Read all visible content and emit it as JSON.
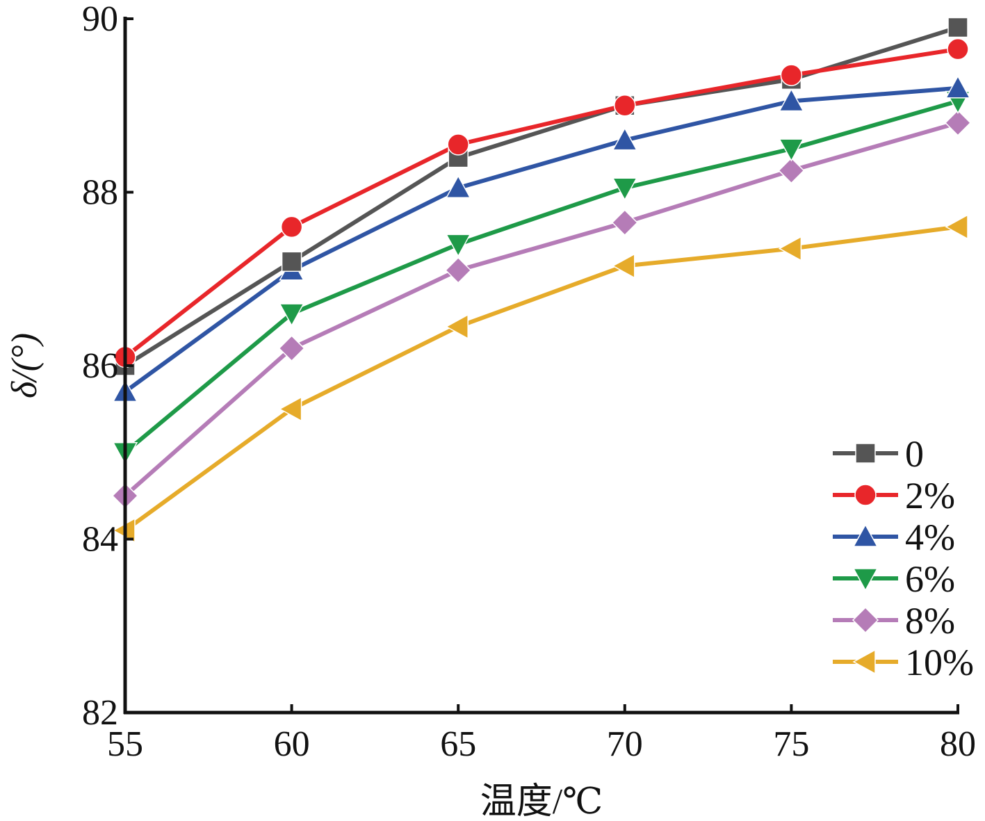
{
  "chart_data": {
    "type": "line",
    "xlabel": "温度/℃",
    "ylabel": "δ/(°)",
    "x": [
      55,
      60,
      65,
      70,
      75,
      80
    ],
    "xlim": [
      55,
      80
    ],
    "ylim": [
      82,
      90
    ],
    "x_ticks": [
      55,
      60,
      65,
      70,
      75,
      80
    ],
    "y_ticks": [
      82,
      84,
      86,
      88,
      90
    ],
    "grid": false,
    "legend_position": "bottom-right",
    "series": [
      {
        "name": "0",
        "color": "#555555",
        "marker": "square",
        "values": [
          86.0,
          87.2,
          88.4,
          89.0,
          89.3,
          89.9
        ]
      },
      {
        "name": "2%",
        "color": "#e8262a",
        "marker": "circle",
        "values": [
          86.1,
          87.6,
          88.55,
          89.0,
          89.35,
          89.65
        ]
      },
      {
        "name": "4%",
        "color": "#2f55a4",
        "marker": "triangle-up",
        "values": [
          85.7,
          87.1,
          88.05,
          88.6,
          89.05,
          89.2
        ]
      },
      {
        "name": "6%",
        "color": "#1e9a48",
        "marker": "triangle-down",
        "values": [
          85.0,
          86.6,
          87.4,
          88.05,
          88.5,
          89.05
        ]
      },
      {
        "name": "8%",
        "color": "#b57cb7",
        "marker": "diamond",
        "values": [
          84.5,
          86.2,
          87.1,
          87.65,
          88.25,
          88.8
        ]
      },
      {
        "name": "10%",
        "color": "#e6ab2a",
        "marker": "triangle-left",
        "values": [
          84.1,
          85.5,
          86.45,
          87.15,
          87.35,
          87.6
        ]
      }
    ]
  }
}
